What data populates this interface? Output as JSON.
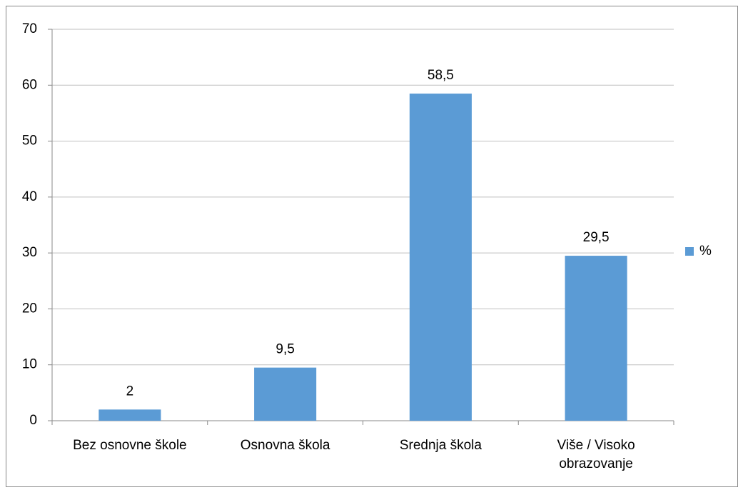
{
  "chart_data": {
    "type": "bar",
    "categories": [
      "Bez osnovne škole",
      "Osnovna škola",
      "Srednja škola",
      "Više / Visoko obrazovanje"
    ],
    "series": [
      {
        "name": "%",
        "color": "#5b9bd5",
        "values": [
          2,
          9.5,
          58.5,
          29.5
        ],
        "value_labels": [
          "2",
          "9,5",
          "58,5",
          "29,5"
        ]
      }
    ],
    "ylim": [
      0,
      70
    ],
    "yticks": [
      0,
      10,
      20,
      30,
      40,
      50,
      60,
      70
    ],
    "grid": true,
    "legend": "right"
  }
}
